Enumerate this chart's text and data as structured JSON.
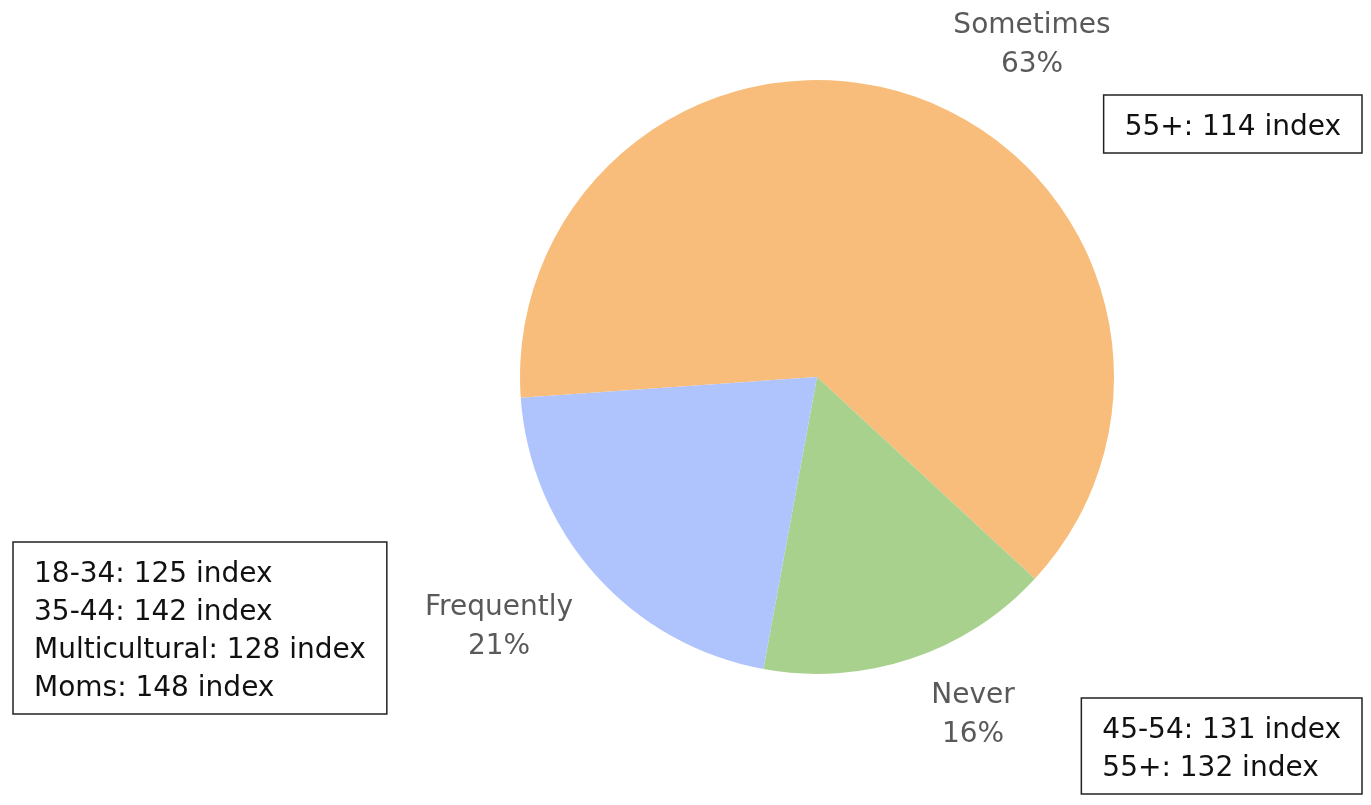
{
  "chart_data": {
    "type": "pie",
    "categories": [
      "Sometimes",
      "Never",
      "Frequently"
    ],
    "values": [
      63,
      16,
      21
    ],
    "colors": [
      "#f8bd7a",
      "#a9d18e",
      "#afc4fc"
    ],
    "value_labels": [
      "63%",
      "16%",
      "21%"
    ],
    "annotations": [
      "55+: 114 index",
      "45-54: 131 index\n55+: 132 index",
      "18-34: 125 index\n35-44: 142 index\nMulticultural: 128 index\nMoms: 148 index"
    ]
  }
}
